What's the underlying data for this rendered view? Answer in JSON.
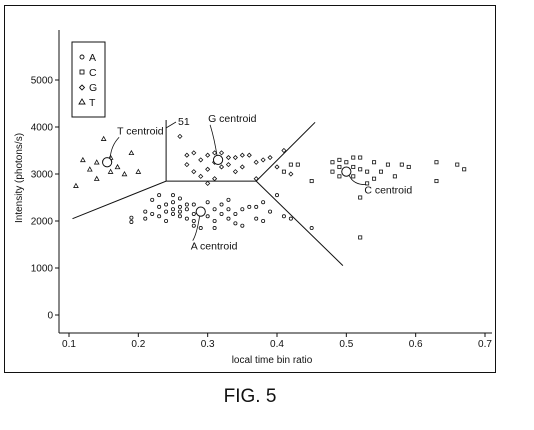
{
  "caption": "FIG. 5",
  "chart_data": {
    "type": "scatter",
    "xlabel": "local time bin ratio",
    "ylabel": "Intensity (photons/s)",
    "xlim": [
      0.1,
      0.7
    ],
    "ylim": [
      -50,
      6000
    ],
    "xticks": [
      "0.1",
      "0.2",
      "0.3",
      "0.4",
      "0.5",
      "0.6",
      "0.7"
    ],
    "yticks": [
      "0",
      "1000",
      "2000",
      "3000",
      "4000",
      "5000"
    ],
    "grid": false,
    "legend_position": "top-left",
    "series": [
      {
        "name": "A",
        "marker": "circle",
        "points": [
          [
            0.19,
            2070
          ],
          [
            0.19,
            1980
          ],
          [
            0.21,
            2200
          ],
          [
            0.21,
            2050
          ],
          [
            0.22,
            2450
          ],
          [
            0.22,
            2150
          ],
          [
            0.23,
            2300
          ],
          [
            0.23,
            2100
          ],
          [
            0.23,
            2550
          ],
          [
            0.24,
            2350
          ],
          [
            0.24,
            2200
          ],
          [
            0.24,
            2000
          ],
          [
            0.25,
            2250
          ],
          [
            0.25,
            2150
          ],
          [
            0.25,
            2400
          ],
          [
            0.26,
            2300
          ],
          [
            0.26,
            2100
          ],
          [
            0.26,
            2200
          ],
          [
            0.27,
            2350
          ],
          [
            0.27,
            2050
          ],
          [
            0.27,
            2250
          ],
          [
            0.28,
            2150
          ],
          [
            0.28,
            2000
          ],
          [
            0.28,
            2350
          ],
          [
            0.28,
            1900
          ],
          [
            0.29,
            2250
          ],
          [
            0.3,
            2100
          ],
          [
            0.3,
            2400
          ],
          [
            0.31,
            2250
          ],
          [
            0.31,
            2000
          ],
          [
            0.31,
            1850
          ],
          [
            0.32,
            2150
          ],
          [
            0.32,
            2350
          ],
          [
            0.33,
            2050
          ],
          [
            0.33,
            2250
          ],
          [
            0.34,
            1950
          ],
          [
            0.34,
            2150
          ],
          [
            0.35,
            2250
          ],
          [
            0.35,
            1900
          ],
          [
            0.36,
            2300
          ],
          [
            0.37,
            2050
          ],
          [
            0.37,
            2300
          ],
          [
            0.38,
            2000
          ],
          [
            0.38,
            2400
          ],
          [
            0.39,
            2200
          ],
          [
            0.4,
            2550
          ],
          [
            0.41,
            2100
          ],
          [
            0.42,
            2050
          ],
          [
            0.45,
            1850
          ],
          [
            0.25,
            2550
          ],
          [
            0.26,
            2480
          ],
          [
            0.29,
            1850
          ],
          [
            0.33,
            2450
          ]
        ]
      },
      {
        "name": "C",
        "marker": "square",
        "points": [
          [
            0.42,
            3200
          ],
          [
            0.43,
            3200
          ],
          [
            0.45,
            2850
          ],
          [
            0.48,
            3250
          ],
          [
            0.48,
            3050
          ],
          [
            0.49,
            3150
          ],
          [
            0.49,
            2950
          ],
          [
            0.5,
            3250
          ],
          [
            0.5,
            3050
          ],
          [
            0.51,
            2950
          ],
          [
            0.51,
            3150
          ],
          [
            0.51,
            3350
          ],
          [
            0.52,
            3100
          ],
          [
            0.52,
            3350
          ],
          [
            0.52,
            2500
          ],
          [
            0.52,
            1650
          ],
          [
            0.53,
            3050
          ],
          [
            0.53,
            2800
          ],
          [
            0.54,
            3250
          ],
          [
            0.54,
            2900
          ],
          [
            0.55,
            3050
          ],
          [
            0.56,
            3200
          ],
          [
            0.57,
            2950
          ],
          [
            0.58,
            3200
          ],
          [
            0.59,
            3150
          ],
          [
            0.63,
            3250
          ],
          [
            0.63,
            2850
          ],
          [
            0.66,
            3200
          ],
          [
            0.67,
            3100
          ],
          [
            0.49,
            3300
          ],
          [
            0.5,
            3100
          ],
          [
            0.41,
            3050
          ]
        ]
      },
      {
        "name": "G",
        "marker": "diamond",
        "points": [
          [
            0.26,
            3800
          ],
          [
            0.27,
            3400
          ],
          [
            0.27,
            3200
          ],
          [
            0.28,
            3450
          ],
          [
            0.28,
            3050
          ],
          [
            0.29,
            3300
          ],
          [
            0.29,
            2950
          ],
          [
            0.3,
            3400
          ],
          [
            0.3,
            3100
          ],
          [
            0.31,
            3250
          ],
          [
            0.31,
            2900
          ],
          [
            0.32,
            3450
          ],
          [
            0.32,
            3150
          ],
          [
            0.33,
            3350
          ],
          [
            0.34,
            3050
          ],
          [
            0.34,
            3350
          ],
          [
            0.35,
            3400
          ],
          [
            0.35,
            3150
          ],
          [
            0.36,
            3400
          ],
          [
            0.37,
            3250
          ],
          [
            0.37,
            2900
          ],
          [
            0.38,
            3300
          ],
          [
            0.39,
            3350
          ],
          [
            0.4,
            3150
          ],
          [
            0.41,
            3500
          ],
          [
            0.42,
            3000
          ],
          [
            0.3,
            2800
          ],
          [
            0.31,
            3450
          ],
          [
            0.33,
            3200
          ]
        ]
      },
      {
        "name": "T",
        "marker": "triangle",
        "points": [
          [
            0.11,
            2750
          ],
          [
            0.12,
            3300
          ],
          [
            0.13,
            3100
          ],
          [
            0.14,
            3250
          ],
          [
            0.14,
            2900
          ],
          [
            0.15,
            3750
          ],
          [
            0.16,
            3350
          ],
          [
            0.16,
            3050
          ],
          [
            0.17,
            3150
          ],
          [
            0.18,
            3000
          ],
          [
            0.19,
            3450
          ],
          [
            0.2,
            3050
          ]
        ]
      }
    ],
    "centroids": [
      {
        "label": "T centroid",
        "x": 0.155,
        "y": 3250
      },
      {
        "label": "G centroid",
        "x": 0.315,
        "y": 3300
      },
      {
        "label": "A centroid",
        "x": 0.29,
        "y": 2200
      },
      {
        "label": "C centroid",
        "x": 0.5,
        "y": 3050
      }
    ],
    "boundaries": [
      [
        [
          0.105,
          2050
        ],
        [
          0.24,
          2850
        ],
        [
          0.37,
          2850
        ],
        [
          0.455,
          4100
        ]
      ],
      [
        [
          0.37,
          2850
        ],
        [
          0.495,
          1050
        ]
      ],
      [
        [
          0.24,
          2850
        ],
        [
          0.24,
          4150
        ]
      ]
    ],
    "boundary_label": "51",
    "legend": [
      "A",
      "C",
      "G",
      "T"
    ]
  }
}
